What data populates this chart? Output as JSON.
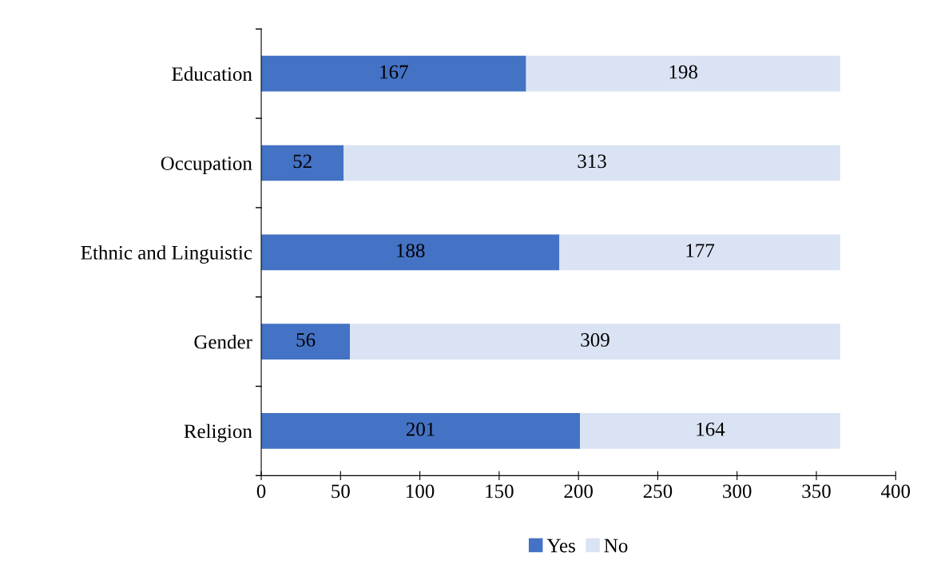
{
  "chart_data": {
    "type": "bar",
    "orientation": "horizontal",
    "stacked": true,
    "categories": [
      "Education",
      "Occupation",
      "Ethnic and Linguistic",
      "Gender",
      "Religion"
    ],
    "series": [
      {
        "name": "Yes",
        "color": "#4472c4",
        "values": [
          167,
          52,
          188,
          56,
          201
        ]
      },
      {
        "name": "No",
        "color": "#dae3f3",
        "values": [
          198,
          313,
          177,
          309,
          164
        ]
      }
    ],
    "xlim": [
      0,
      400
    ],
    "xticks": [
      0,
      50,
      100,
      150,
      200,
      250,
      300,
      350,
      400
    ],
    "data_labels": true,
    "grid": false,
    "legend": "bottom"
  }
}
